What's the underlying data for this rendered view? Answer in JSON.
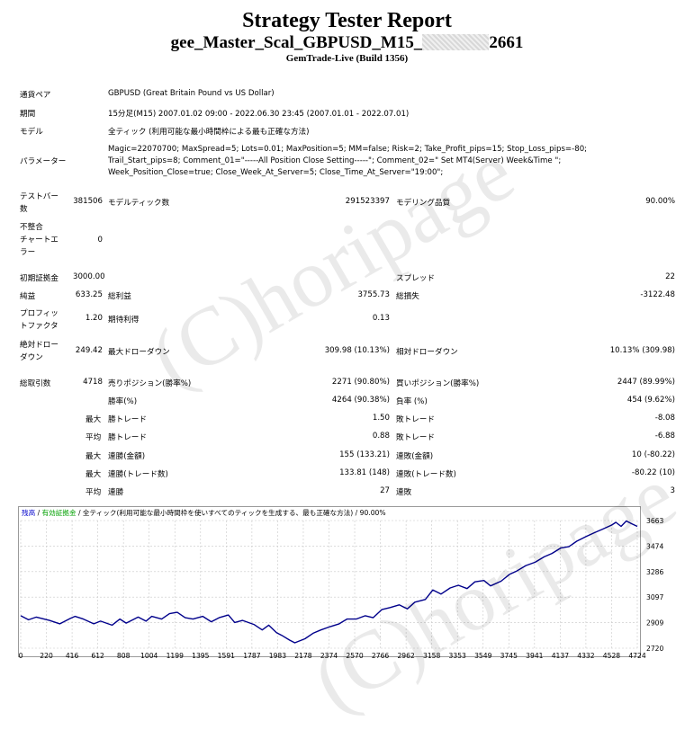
{
  "header": {
    "title": "Strategy Tester Report",
    "subtitle_left": "gee_Master_Scal_GBPUSD_M15_",
    "subtitle_right": "2661",
    "build": "GemTrade-Live (Build 1356)"
  },
  "info": {
    "pair_label": "通貨ペア",
    "pair_value": "GBPUSD (Great Britain Pound vs US Dollar)",
    "period_label": "期間",
    "period_value": "15分足(M15) 2007.01.02 09:00 - 2022.06.30 23:45 (2007.01.01 - 2022.07.01)",
    "model_label": "モデル",
    "model_value": "全ティック (利用可能な最小時間枠による最も正確な方法)",
    "params_label": "パラメーター",
    "params_lines": [
      "Magic=22070700; MaxSpread=5; Lots=0.01; MaxPosition=5; MM=false; Risk=2; Take_Profit_pips=15; Stop_Loss_pips=-80;",
      "Trail_Start_pips=8; Comment_01=\"-----All Position Close Setting-----\"; Comment_02=\" Set MT4(Server) Week&Time \";",
      "Week_Position_Close=true; Close_Week_At_Server=5; Close_Time_At_Server=\"19:00\";"
    ]
  },
  "bars": {
    "label_1": "テストバー",
    "label_2": "数",
    "value": "381506",
    "ticks_label": "モデルティック数",
    "ticks_value": "291523397",
    "quality_label": "モデリング品質",
    "quality_value": "90.00%"
  },
  "mismatch": {
    "label_1": "不整合",
    "label_2": "チャートエ",
    "label_3": "ラー",
    "value": "0"
  },
  "stats": {
    "deposit_label": "初期証拠金",
    "deposit_value": "3000.00",
    "spread_label": "スプレッド",
    "spread_value": "22",
    "net_label": "純益",
    "net_value": "633.25",
    "gross_profit_label": "総利益",
    "gross_profit_value": "3755.73",
    "gross_loss_label": "総損失",
    "gross_loss_value": "-3122.48",
    "pf_label_1": "プロフィッ",
    "pf_label_2": "トファクタ",
    "pf_value": "1.20",
    "expected_label": "期待利得",
    "expected_value": "0.13",
    "abs_dd_label_1": "絶対ドロー",
    "abs_dd_label_2": "ダウン",
    "abs_dd_value": "249.42",
    "max_dd_label": "最大ドローダウン",
    "max_dd_value": "309.98 (10.13%)",
    "rel_dd_label": "相対ドローダウン",
    "rel_dd_value": "10.13% (309.98)"
  },
  "trades": {
    "total_label": "総取引数",
    "total_value": "4718",
    "short_label": "売りポジション(勝率%)",
    "short_value": "2271 (90.80%)",
    "long_label": "買いポジション(勝率%)",
    "long_value": "2447 (89.99%)",
    "win_label": "勝率(%)",
    "win_value": "4264 (90.38%)",
    "loss_label": "負率 (%)",
    "loss_value": "454 (9.62%)",
    "max_label": "最大",
    "avg_label": "平均",
    "max_win_label": "勝トレード",
    "max_win_value": "1.50",
    "max_loss_label": "敗トレード",
    "max_loss_value": "-8.08",
    "avg_win_label": "勝トレード",
    "avg_win_value": "0.88",
    "avg_loss_label": "敗トレード",
    "avg_loss_value": "-6.88",
    "cons_win_money_label": "連勝(金額)",
    "cons_win_money_value": "155 (133.21)",
    "cons_loss_money_label": "連敗(金額)",
    "cons_loss_money_value": "10 (-80.22)",
    "cons_win_count_label": "連勝(トレード数)",
    "cons_win_count_value": "133.81 (148)",
    "cons_loss_count_label": "連敗(トレード数)",
    "cons_loss_count_value": "-80.22 (10)",
    "avg_cons_win_label": "連勝",
    "avg_cons_win_value": "27",
    "avg_cons_loss_label": "連敗",
    "avg_cons_loss_value": "3"
  },
  "watermark": "(C)horipage",
  "chart_legend": {
    "balance": "残高",
    "balance_color": "#0000cc",
    "sep1": " / ",
    "margin": "有効証拠金",
    "margin_color": "#00a000",
    "rest": " / 全ティック(利用可能な最小時間枠を使いすべてのティックを生成する、最も正確な方法) / 90.00%"
  },
  "chart_data": {
    "type": "line",
    "x_ticks": [
      "0",
      "220",
      "416",
      "612",
      "808",
      "1004",
      "1199",
      "1395",
      "1591",
      "1787",
      "1983",
      "2178",
      "2374",
      "2570",
      "2766",
      "2962",
      "3158",
      "3353",
      "3549",
      "3745",
      "3941",
      "4137",
      "4332",
      "4528",
      "4724"
    ],
    "y_ticks": [
      "3663",
      "3474",
      "3286",
      "3097",
      "2909",
      "2720"
    ],
    "ylim": [
      2720,
      3663
    ],
    "xlim": [
      0,
      4724
    ],
    "series": [
      {
        "color": "#00008b",
        "x": [
          0,
          60,
          120,
          220,
          300,
          380,
          416,
          480,
          560,
          612,
          700,
          760,
          808,
          900,
          960,
          1004,
          1080,
          1140,
          1199,
          1260,
          1320,
          1395,
          1460,
          1520,
          1591,
          1640,
          1700,
          1787,
          1850,
          1900,
          1960,
          2000,
          2060,
          2100,
          2178,
          2240,
          2300,
          2374,
          2440,
          2500,
          2570,
          2640,
          2700,
          2766,
          2830,
          2900,
          2962,
          3020,
          3100,
          3158,
          3220,
          3290,
          3353,
          3420,
          3480,
          3549,
          3600,
          3680,
          3745,
          3800,
          3870,
          3941,
          4010,
          4070,
          4137,
          4200,
          4260,
          4332,
          4400,
          4460,
          4528,
          4560,
          4600,
          4640,
          4680,
          4724
        ],
        "y": [
          2960,
          2930,
          2950,
          2925,
          2900,
          2940,
          2955,
          2935,
          2900,
          2920,
          2890,
          2935,
          2905,
          2950,
          2920,
          2955,
          2935,
          2975,
          2985,
          2945,
          2935,
          2955,
          2915,
          2945,
          2965,
          2910,
          2925,
          2895,
          2855,
          2890,
          2835,
          2815,
          2780,
          2760,
          2790,
          2830,
          2855,
          2880,
          2900,
          2935,
          2935,
          2960,
          2945,
          3005,
          3020,
          3040,
          3010,
          3060,
          3080,
          3150,
          3120,
          3165,
          3185,
          3160,
          3210,
          3220,
          3180,
          3215,
          3265,
          3290,
          3330,
          3355,
          3395,
          3420,
          3460,
          3470,
          3510,
          3545,
          3575,
          3600,
          3630,
          3650,
          3620,
          3660,
          3640,
          3620
        ]
      }
    ]
  }
}
